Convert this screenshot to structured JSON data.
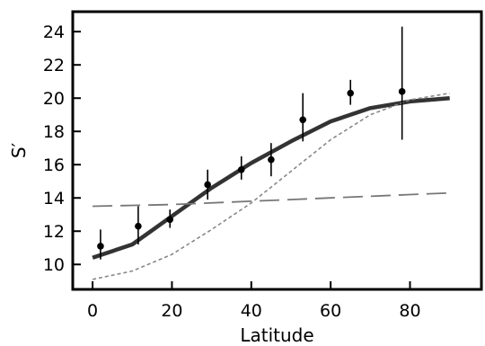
{
  "chart_data": {
    "type": "line",
    "title": "",
    "xlabel": "Latitude",
    "ylabel": "S′",
    "xlim": [
      -5,
      98
    ],
    "ylim": [
      8.5,
      25.2
    ],
    "x_ticks": [
      0,
      20,
      40,
      60,
      80
    ],
    "y_ticks": [
      10,
      12,
      14,
      16,
      18,
      20,
      22,
      24
    ],
    "grid": false,
    "legend": "none",
    "series": [
      {
        "style": "solid-thick",
        "color": "#333333",
        "x": [
          0,
          10,
          20,
          30,
          40,
          50,
          60,
          70,
          80,
          90
        ],
        "y": [
          10.4,
          11.2,
          12.9,
          14.6,
          16.1,
          17.4,
          18.6,
          19.4,
          19.8,
          20.0
        ]
      },
      {
        "style": "long-dash",
        "color": "#777777",
        "x": [
          0,
          20,
          40,
          60,
          70,
          80,
          90
        ],
        "y": [
          13.5,
          13.6,
          13.8,
          14.0,
          14.1,
          14.2,
          14.3
        ]
      },
      {
        "style": "short-dash",
        "color": "#888888",
        "x": [
          0,
          10,
          20,
          30,
          40,
          50,
          60,
          70,
          80,
          90
        ],
        "y": [
          9.1,
          9.6,
          10.6,
          12.1,
          13.7,
          15.6,
          17.5,
          19.0,
          19.9,
          20.3
        ]
      },
      {
        "style": "points-with-errorbars",
        "color": "#000000",
        "x": [
          2,
          11.5,
          19.5,
          29,
          37.5,
          45,
          53,
          65,
          78
        ],
        "y": [
          11.1,
          12.3,
          12.7,
          14.8,
          15.7,
          16.3,
          18.7,
          20.3,
          20.4
        ],
        "err_low": [
          10.3,
          11.2,
          12.2,
          13.9,
          15.1,
          15.3,
          17.4,
          19.6,
          17.5
        ],
        "err_high": [
          12.1,
          13.5,
          13.3,
          15.7,
          16.5,
          17.3,
          20.3,
          21.1,
          24.3
        ]
      }
    ]
  }
}
